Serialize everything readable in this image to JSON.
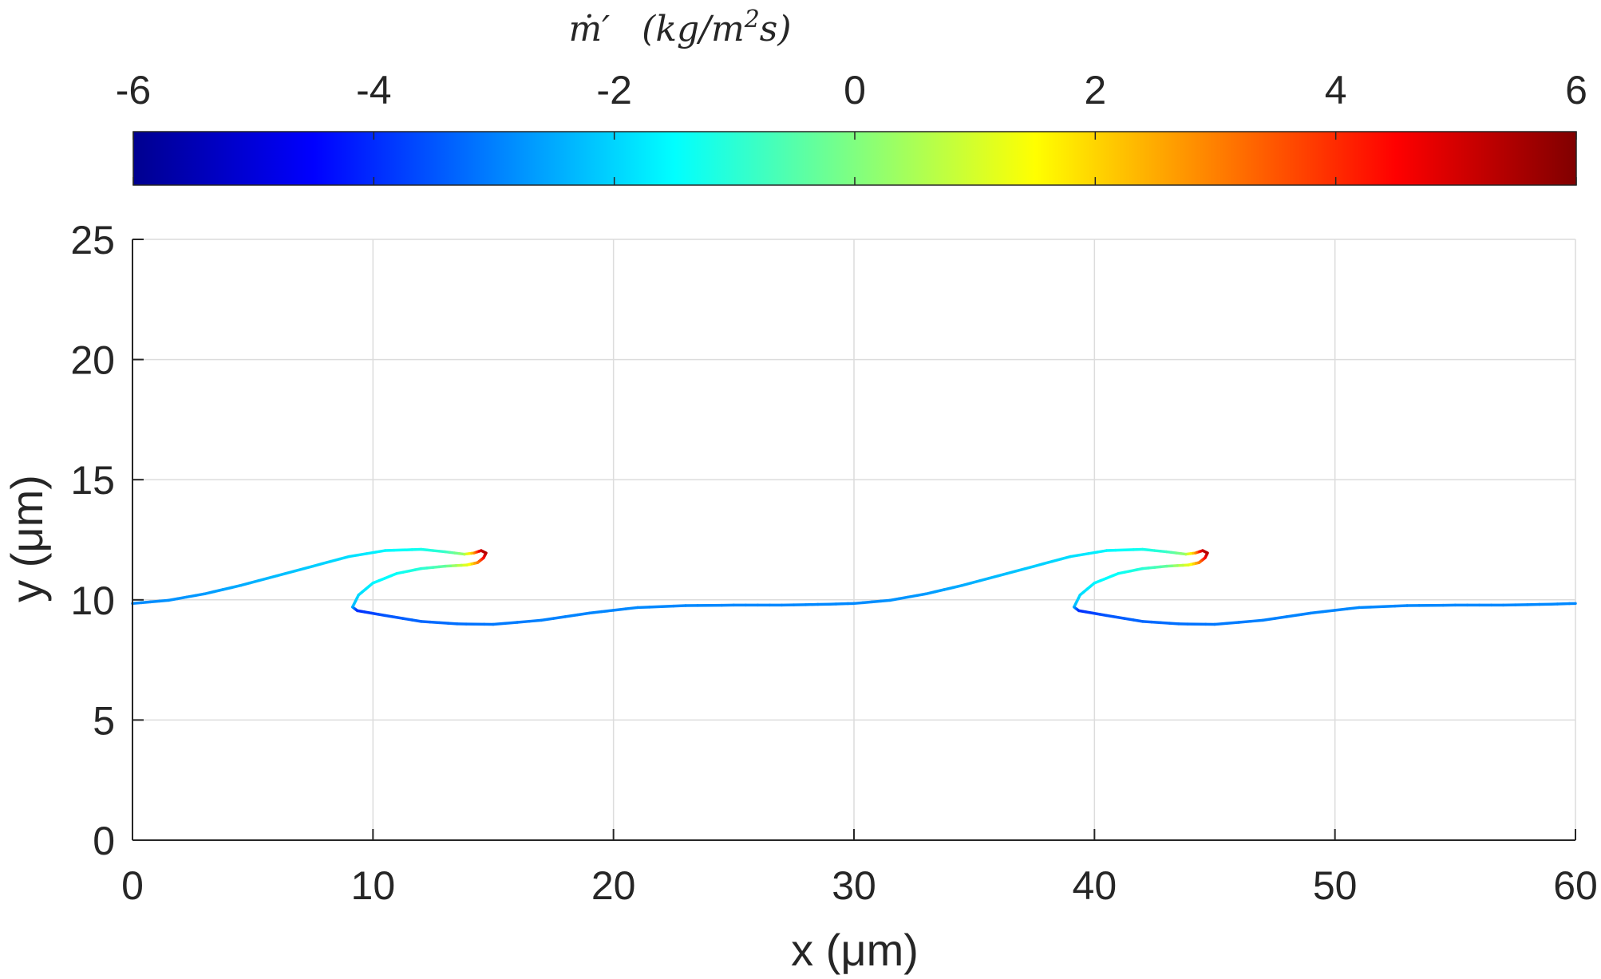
{
  "colorbar": {
    "label": "ṁ′   (kg/m²s)",
    "label_parts": {
      "quantity": "ṁ′",
      "unit_open": "(kg/m",
      "unit_sup": "2",
      "unit_close": "s)"
    },
    "ticks": [
      "-6",
      "-4",
      "-2",
      "0",
      "2",
      "4",
      "6"
    ],
    "range": [
      -6,
      6
    ],
    "colormap": "jet",
    "colormap_stops": [
      "#00008f",
      "#0000ff",
      "#0080ff",
      "#00ffff",
      "#80ff80",
      "#ffff00",
      "#ff8000",
      "#ff0000",
      "#800000"
    ]
  },
  "chart_data": {
    "type": "line",
    "xlabel": "x (μm)",
    "ylabel": "y (μm)",
    "xlim": [
      0,
      60
    ],
    "ylim": [
      0,
      25
    ],
    "xticks": [
      "0",
      "10",
      "20",
      "30",
      "40",
      "50",
      "60"
    ],
    "yticks": [
      "0",
      "5",
      "10",
      "15",
      "20",
      "25"
    ],
    "grid": true,
    "colored_by": "ṁ′",
    "period": 30,
    "series": [
      {
        "points": [
          [
            0.0,
            9.85,
            -2.9
          ],
          [
            1.5,
            9.98,
            -2.8
          ],
          [
            3.0,
            10.25,
            -2.7
          ],
          [
            4.5,
            10.6,
            -2.5
          ],
          [
            6.0,
            11.0,
            -2.3
          ],
          [
            7.5,
            11.4,
            -2.1
          ],
          [
            9.0,
            11.8,
            -1.9
          ],
          [
            10.5,
            12.05,
            -1.6
          ],
          [
            12.0,
            12.1,
            -1.3
          ],
          [
            13.0,
            12.0,
            -0.9
          ],
          [
            13.8,
            11.9,
            0.3
          ],
          [
            14.2,
            11.95,
            2.5
          ],
          [
            14.5,
            12.05,
            5.0
          ],
          [
            14.7,
            11.95,
            5.5
          ],
          [
            14.6,
            11.75,
            4.8
          ],
          [
            14.35,
            11.55,
            3.2
          ],
          [
            13.9,
            11.45,
            1.3
          ],
          [
            13.0,
            11.4,
            -0.3
          ],
          [
            12.0,
            11.3,
            -1.0
          ],
          [
            11.0,
            11.1,
            -1.4
          ],
          [
            10.0,
            10.7,
            -1.6
          ],
          [
            9.4,
            10.2,
            -1.9
          ],
          [
            9.15,
            9.7,
            -2.3
          ],
          [
            9.35,
            9.55,
            -4.0
          ],
          [
            10.5,
            9.35,
            -3.5
          ],
          [
            12.0,
            9.1,
            -3.3
          ],
          [
            13.5,
            9.0,
            -3.2
          ],
          [
            15.0,
            8.98,
            -3.1
          ],
          [
            17.0,
            9.15,
            -3.0
          ],
          [
            19.0,
            9.45,
            -2.95
          ],
          [
            21.0,
            9.68,
            -2.9
          ],
          [
            23.0,
            9.76,
            -2.9
          ],
          [
            25.0,
            9.78,
            -2.9
          ],
          [
            27.0,
            9.78,
            -2.9
          ],
          [
            29.0,
            9.82,
            -2.9
          ],
          [
            30.0,
            9.85,
            -2.9
          ]
        ]
      }
    ]
  }
}
